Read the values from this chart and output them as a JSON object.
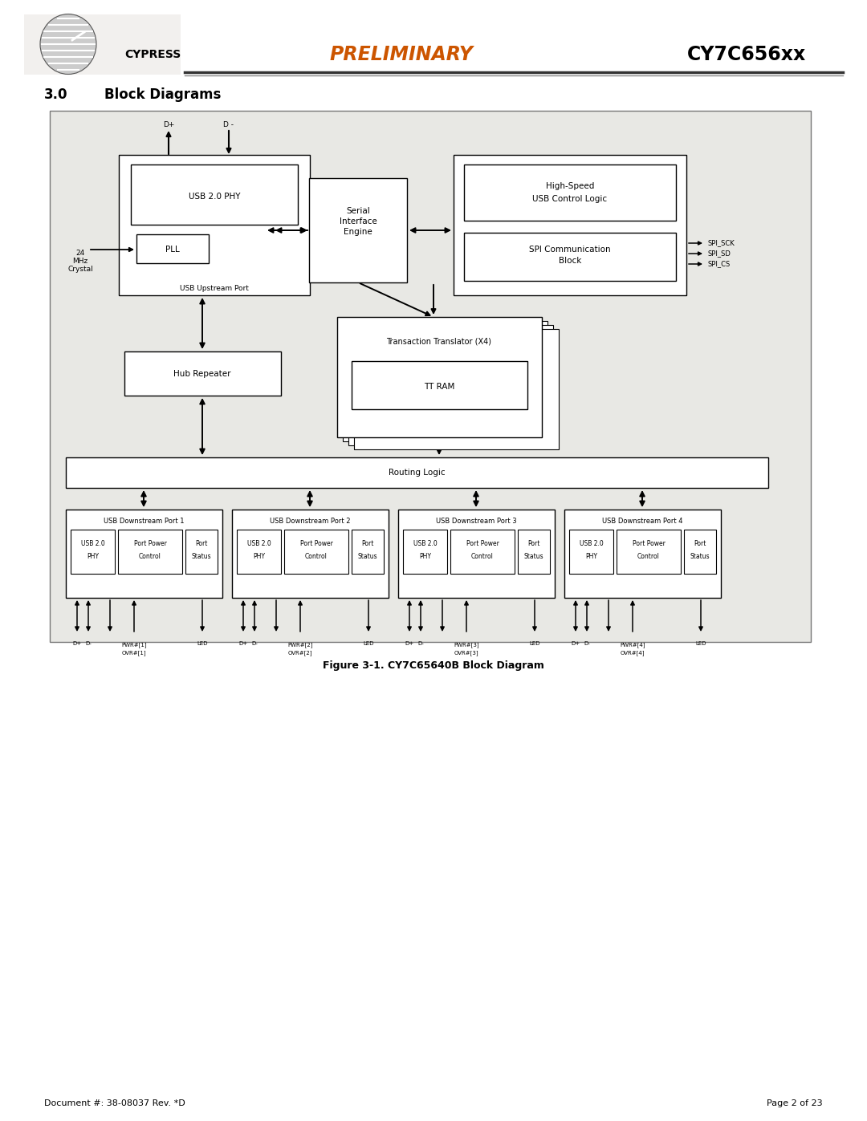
{
  "title": "CY7C656xx",
  "preliminary": "PRELIMINARY",
  "section": "3.0",
  "section_title": "Block Diagrams",
  "figure_caption": "Figure 3-1. CY7C65640B Block Diagram",
  "doc_number": "Document #: 38-08037 Rev. *D",
  "page": "Page 2 of 23",
  "bg_color": "#eeeeea",
  "box_fill": "#ffffff",
  "preliminary_color": "#cc5500",
  "diagram_bg": "#e8e8e4"
}
